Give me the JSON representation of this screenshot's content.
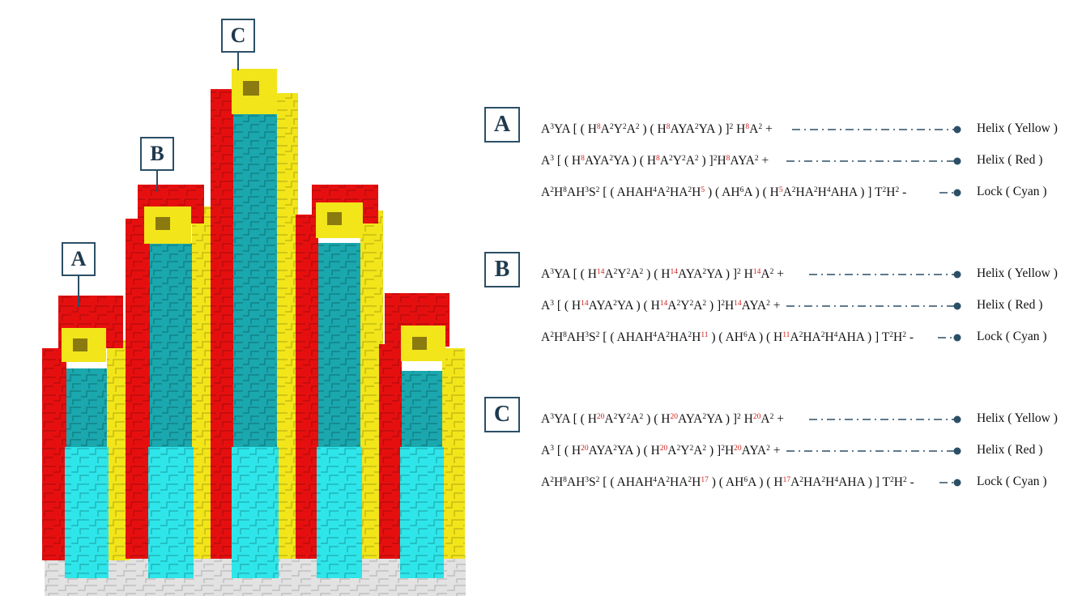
{
  "labels": {
    "a": "A",
    "b": "B",
    "c": "C"
  },
  "colors": {
    "red": "#e60f0f",
    "yellow": "#f2e51a",
    "teal": "#1fb0b5",
    "cyan": "#2ee6ea",
    "grey": "#dcdcdc",
    "frame": "#2b4f66",
    "highlight": "#d0201c"
  },
  "groups": [
    {
      "id": "A",
      "label": "A",
      "rows": [
        {
          "formula": "A^3YA [ ( H~8~A^2Y^2A^2 ) ( H~8~AYA^2YA ) ]^2 H~8~A^2 +",
          "name": "Helix ( Yellow )"
        },
        {
          "formula": "A^3 [ ( H~8~AYA^2YA ) ( H~8~A^2Y^2A^2 ) ]^2H~8~AYA^2 +",
          "name": "Helix ( Red )"
        },
        {
          "formula": "A^2H^8AH^3S^2 [ ( AHAH^4A^2HA^2H~5~ ) ( AH^6A ) ( H~5~A^2HA^2H^4AHA ) ] T^2H^2 -",
          "name": "Lock ( Cyan )"
        }
      ]
    },
    {
      "id": "B",
      "label": "B",
      "rows": [
        {
          "formula": "A^3YA [ ( H~14~A^2Y^2A^2 ) ( H~14~AYA^2YA ) ]^2 H~14~A^2 +",
          "name": "Helix ( Yellow )"
        },
        {
          "formula": "A^3 [ ( H~14~AYA^2YA ) ( H~14~A^2Y^2A^2 ) ]^2H~14~AYA^2 +",
          "name": "Helix ( Red )"
        },
        {
          "formula": "A^2H^8AH^3S^2 [ ( AHAH^4A^2HA^2H~11~ ) ( AH^6A ) ( H~11~A^2HA^2H^4AHA ) ] T^2H^2 -",
          "name": "Lock ( Cyan )"
        }
      ]
    },
    {
      "id": "C",
      "label": "C",
      "rows": [
        {
          "formula": "A^3YA [ ( H~20~A^2Y^2A^2 ) ( H~20~AYA^2YA ) ]^2 H~20~A^2 +",
          "name": "Helix ( Yellow )"
        },
        {
          "formula": "A^3 [ ( H~20~AYA^2YA ) ( H~20~A^2Y^2A^2 ) ]^2H~20~AYA^2 +",
          "name": "Helix ( Red )"
        },
        {
          "formula": "A^2H^8AH^3S^2 [ ( AHAH^4A^2HA^2H~17~ ) ( AH^6A ) ( H~17~A^2HA^2H^4AHA ) ] T^2H^2 -",
          "name": "Lock ( Cyan )"
        }
      ]
    }
  ]
}
